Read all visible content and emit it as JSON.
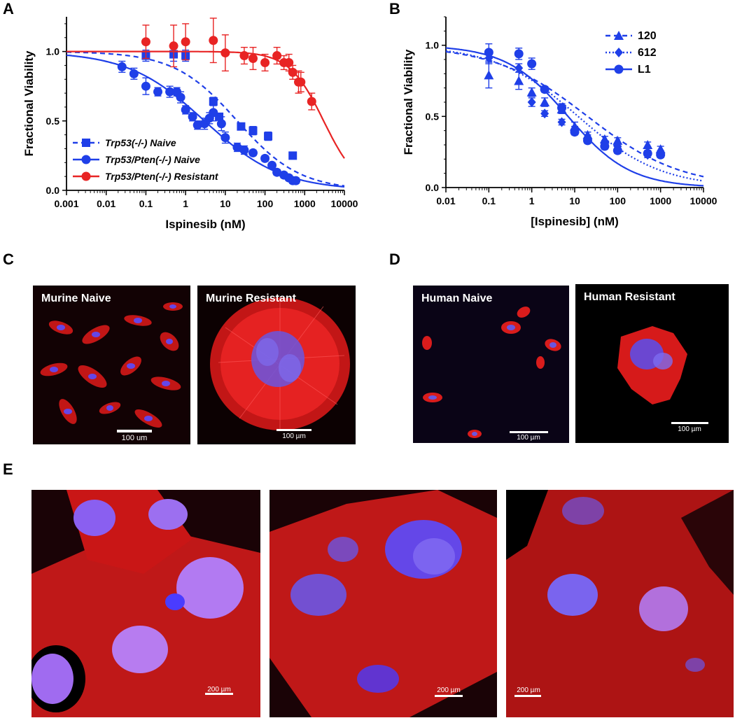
{
  "panel_letters": {
    "a": "A",
    "b": "B",
    "c": "C",
    "d": "D",
    "e": "E"
  },
  "chart_data": [
    {
      "panel": "A",
      "type": "scatter",
      "xlabel": "Ispinesib (nM)",
      "ylabel": "Fractional Viability",
      "xscale": "log",
      "xlim": [
        0.001,
        10000
      ],
      "ylim": [
        0,
        1.25
      ],
      "xticks": [
        "0.001",
        "0.01",
        "0.1",
        "1",
        "10",
        "100",
        "1000",
        "10000"
      ],
      "yticks": [
        "0.0",
        "0.5",
        "1.0"
      ],
      "legend_position": "bottom-left",
      "series": [
        {
          "name": "Trp53(-/-) Naive",
          "marker": "square",
          "line": "dashed",
          "color": "#1f3fe8",
          "ic50": 20,
          "hill": 0.55,
          "top": 1.0,
          "bottom": 0.0,
          "x": [
            0.1,
            0.5,
            1,
            5,
            7,
            25,
            50,
            120,
            500
          ],
          "y": [
            0.97,
            0.98,
            0.97,
            0.64,
            0.53,
            0.46,
            0.43,
            0.39,
            0.25
          ],
          "err": [
            0.04,
            0.05,
            0.04,
            0.03,
            0.02,
            0.02,
            0.03,
            0.03,
            0.02
          ]
        },
        {
          "name": "Trp53/Pten(-/-) Naive",
          "marker": "circle",
          "line": "solid",
          "color": "#1f3fe8",
          "ic50": 3,
          "hill": 0.45,
          "top": 1.0,
          "bottom": 0.0,
          "x": [
            0.025,
            0.05,
            0.1,
            0.2,
            0.4,
            0.6,
            0.75,
            1,
            1.5,
            2,
            3,
            4,
            5,
            8,
            10,
            20,
            30,
            50,
            100,
            150,
            200,
            300,
            400,
            500,
            600
          ],
          "y": [
            0.89,
            0.84,
            0.75,
            0.71,
            0.71,
            0.71,
            0.67,
            0.58,
            0.53,
            0.47,
            0.48,
            0.52,
            0.56,
            0.48,
            0.38,
            0.31,
            0.29,
            0.27,
            0.23,
            0.18,
            0.13,
            0.11,
            0.09,
            0.07,
            0.07
          ],
          "err": [
            0.04,
            0.04,
            0.06,
            0.03,
            0.04,
            0.03,
            0.04,
            0.03,
            0.03,
            0.03,
            0.04,
            0.04,
            0.06,
            0.05,
            0.04,
            0.03,
            0.03,
            0.02,
            0.02,
            0.02,
            0.02,
            0.02,
            0.02,
            0.02,
            0.02
          ]
        },
        {
          "name": "Trp53/Pten(-/-) Resistant",
          "marker": "circle",
          "line": "solid",
          "color": "#e82424",
          "ic50": 3000,
          "hill": 1.0,
          "top": 1.0,
          "bottom": 0.0,
          "x": [
            0.1,
            0.5,
            1,
            5,
            10,
            30,
            50,
            100,
            200,
            300,
            400,
            500,
            700,
            800,
            1500
          ],
          "y": [
            1.07,
            1.04,
            1.07,
            1.08,
            0.99,
            0.97,
            0.95,
            0.92,
            0.97,
            0.92,
            0.92,
            0.85,
            0.78,
            0.78,
            0.64
          ],
          "err": [
            0.12,
            0.15,
            0.13,
            0.16,
            0.13,
            0.06,
            0.08,
            0.06,
            0.06,
            0.05,
            0.06,
            0.05,
            0.08,
            0.07,
            0.06
          ]
        }
      ]
    },
    {
      "panel": "B",
      "type": "scatter",
      "xlabel": "[Ispinesib] (nM)",
      "ylabel": "Fractional Viability",
      "xscale": "log",
      "xlim": [
        0.01,
        10000
      ],
      "ylim": [
        0,
        1.2
      ],
      "xticks": [
        "0.01",
        "0.1",
        "1",
        "10",
        "100",
        "1000",
        "10000"
      ],
      "yticks": [
        "0.0",
        "0.5",
        "1.0"
      ],
      "legend_position": "top-right",
      "series": [
        {
          "name": "120",
          "marker": "triangle",
          "line": "dashed",
          "color": "#1f3fe8",
          "ic50": 20,
          "hill": 0.4,
          "top": 1.0,
          "bottom": 0.0,
          "x": [
            0.1,
            0.5,
            1,
            2,
            5,
            10,
            20,
            50,
            100,
            500,
            1000
          ],
          "y": [
            0.79,
            0.75,
            0.67,
            0.6,
            0.55,
            0.43,
            0.37,
            0.34,
            0.33,
            0.3,
            0.27
          ],
          "err": [
            0.09,
            0.06,
            0.03,
            0.03,
            0.03,
            0.03,
            0.02,
            0.02,
            0.02,
            0.02,
            0.02
          ]
        },
        {
          "name": "612",
          "marker": "diamond",
          "line": "dotted",
          "color": "#1f3fe8",
          "ic50": 12,
          "hill": 0.45,
          "top": 1.0,
          "bottom": 0.0,
          "x": [
            0.1,
            0.5,
            1,
            2,
            5,
            10,
            20,
            50,
            100,
            500,
            1000
          ],
          "y": [
            0.91,
            0.84,
            0.6,
            0.52,
            0.46,
            0.41,
            0.35,
            0.31,
            0.29,
            0.23,
            0.24
          ],
          "err": [
            0.04,
            0.03,
            0.03,
            0.02,
            0.02,
            0.02,
            0.02,
            0.02,
            0.02,
            0.02,
            0.02
          ]
        },
        {
          "name": "L1",
          "marker": "circle",
          "line": "solid",
          "color": "#1f3fe8",
          "ic50": 7,
          "hill": 0.6,
          "top": 1.0,
          "bottom": 0.0,
          "x": [
            0.1,
            0.5,
            1,
            2,
            5,
            10,
            20,
            50,
            100,
            500,
            1000
          ],
          "y": [
            0.95,
            0.94,
            0.87,
            0.69,
            0.56,
            0.39,
            0.33,
            0.29,
            0.26,
            0.24,
            0.23
          ],
          "err": [
            0.06,
            0.04,
            0.04,
            0.02,
            0.03,
            0.02,
            0.02,
            0.02,
            0.02,
            0.02,
            0.02
          ]
        }
      ]
    }
  ],
  "micrographs": {
    "c1": {
      "title": "Murine Naive",
      "scale": "100 um"
    },
    "c2": {
      "title": "Murine Resistant",
      "scale": "100 µm"
    },
    "d1": {
      "title": "Human Naive",
      "scale": "100 µm"
    },
    "d2": {
      "title": "Human Resistant",
      "scale": "100 µm"
    },
    "e1": {
      "scale": "200 µm"
    },
    "e2": {
      "scale": "200 µm"
    },
    "e3": {
      "scale": "200 µm"
    }
  },
  "colors": {
    "red_stain": "#e01a1a",
    "blue_stain": "#5a4cff",
    "background": "#000000"
  }
}
